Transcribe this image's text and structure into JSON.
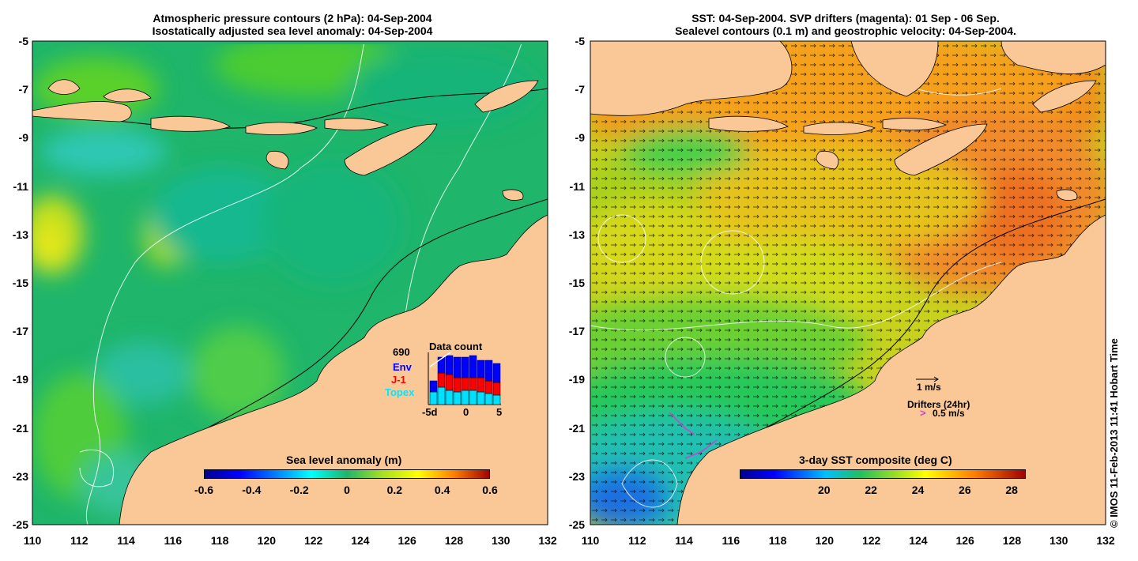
{
  "left_panel": {
    "title_line1": "Atmospheric pressure contours (2 hPa): 04-Sep-2004",
    "title_line2": "Isostatically adjusted sea level anomaly: 04-Sep-2004",
    "colorbar": {
      "label": "Sea level anomaly (m)",
      "ticks": [
        "-0.6",
        "-0.4",
        "-0.2",
        "0",
        "0.2",
        "0.4",
        "0.6"
      ]
    },
    "data_count": {
      "total": "690",
      "title": "Data count",
      "legend": [
        "Env",
        "J-1",
        "Topex"
      ],
      "legend_colors": [
        "#0000ff",
        "#ff0000",
        "#00e0ff"
      ],
      "x_ticks": [
        "-5d",
        "0",
        "5"
      ]
    }
  },
  "right_panel": {
    "title_line1": "SST: 04-Sep-2004. SVP drifters (magenta): 01 Sep - 06 Sep.",
    "title_line2": "Sealevel contours (0.1 m) and geostrophic velocity: 04-Sep-2004.",
    "velocity_scale": "1 m/s",
    "drifters_label": "Drifters (24hr)",
    "drifter_symbol": ">",
    "drifter_speed": "0.5 m/s",
    "colorbar": {
      "label": "3-day SST composite (deg C)",
      "ticks": [
        "20",
        "22",
        "24",
        "26",
        "28"
      ]
    }
  },
  "axes": {
    "y_ticks": [
      "-5",
      "-7",
      "-9",
      "-11",
      "-13",
      "-15",
      "-17",
      "-19",
      "-21",
      "-23",
      "-25"
    ],
    "x_ticks": [
      "110",
      "112",
      "114",
      "116",
      "118",
      "120",
      "122",
      "124",
      "126",
      "128",
      "130",
      "132"
    ]
  },
  "credit": "© IMOS 11-Feb-2013 11:41 Hobart Time",
  "colors": {
    "land": "#f9c896",
    "sea_left": "#1fb56a",
    "sea_right_warm": "#f08a1e",
    "sea_right_mid": "#c8d21e",
    "sea_right_cool": "#2ad16a"
  }
}
